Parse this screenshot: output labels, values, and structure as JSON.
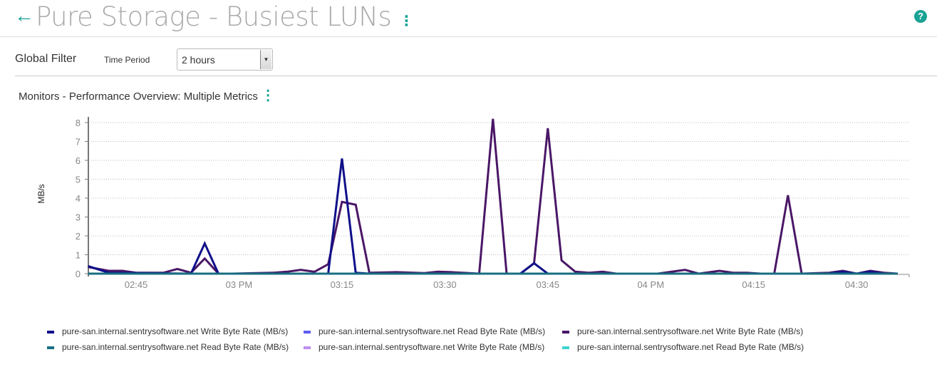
{
  "header": {
    "title": "Pure Storage - Busiest LUNs",
    "back_icon": "arrow-left-icon",
    "help_icon": "question-circle-icon",
    "help_label": "?",
    "menu_label": "⋮"
  },
  "filter": {
    "label": "Global Filter",
    "time_period_label": "Time Period",
    "time_period_value": "2 hours",
    "dropdown_arrow": "▼"
  },
  "widget": {
    "title": "Monitors - Performance Overview: Multiple Metrics",
    "menu_label": "⋮"
  },
  "chart_data": {
    "type": "line",
    "ylabel": "MB/s",
    "xlabel": "",
    "ylim": [
      0,
      8
    ],
    "yticks": [
      "0",
      "1",
      "2",
      "3",
      "4",
      "5",
      "6",
      "7",
      "8"
    ],
    "xticks": [
      {
        "t": "14:45",
        "label": "02:45"
      },
      {
        "t": "15:00",
        "label": "03 PM"
      },
      {
        "t": "15:15",
        "label": "03:15"
      },
      {
        "t": "15:30",
        "label": "03:30"
      },
      {
        "t": "15:45",
        "label": "03:45"
      },
      {
        "t": "16:00",
        "label": "04 PM"
      },
      {
        "t": "16:15",
        "label": "04:15"
      },
      {
        "t": "16:30",
        "label": "04:30"
      }
    ],
    "grid": true,
    "legend_position": "bottom",
    "series": [
      {
        "name": "pure-san.internal.sentrysoftware.net Write Byte Rate (MB/s)",
        "color": "#4a1766",
        "points": [
          [
            "14:38",
            0.35
          ],
          [
            "14:41",
            0.15
          ],
          [
            "14:43",
            0.15
          ],
          [
            "14:45",
            0.05
          ],
          [
            "14:49",
            0.05
          ],
          [
            "14:51",
            0.25
          ],
          [
            "14:53",
            0.05
          ],
          [
            "14:55",
            0.8
          ],
          [
            "14:57",
            0
          ],
          [
            "14:59",
            0
          ],
          [
            "15:05",
            0.05
          ],
          [
            "15:07",
            0.1
          ],
          [
            "15:09",
            0.2
          ],
          [
            "15:11",
            0.1
          ],
          [
            "15:13",
            0.5
          ],
          [
            "15:15",
            3.8
          ],
          [
            "15:17",
            3.65
          ],
          [
            "15:19",
            0.05
          ],
          [
            "15:23",
            0.08
          ],
          [
            "15:27",
            0.03
          ],
          [
            "15:29",
            0.1
          ],
          [
            "15:31",
            0.08
          ],
          [
            "15:35",
            0
          ],
          [
            "15:37",
            8.2
          ],
          [
            "15:39",
            0
          ],
          [
            "15:41",
            0
          ],
          [
            "15:43",
            0.55
          ],
          [
            "15:45",
            7.7
          ],
          [
            "15:47",
            0.7
          ],
          [
            "15:49",
            0.1
          ],
          [
            "15:51",
            0.05
          ],
          [
            "15:53",
            0.1
          ],
          [
            "15:55",
            0
          ],
          [
            "16:01",
            0
          ],
          [
            "16:05",
            0.2
          ],
          [
            "16:07",
            0
          ],
          [
            "16:10",
            0.15
          ],
          [
            "16:12",
            0.05
          ],
          [
            "16:14",
            0.05
          ],
          [
            "16:16",
            0
          ],
          [
            "16:18",
            0
          ],
          [
            "16:20",
            4.15
          ],
          [
            "16:22",
            0
          ],
          [
            "16:26",
            0.05
          ],
          [
            "16:28",
            0.15
          ],
          [
            "16:30",
            0
          ],
          [
            "16:32",
            0.15
          ],
          [
            "16:34",
            0.05
          ],
          [
            "16:36",
            0
          ]
        ]
      },
      {
        "name": "pure-san.internal.sentrysoftware.net Write Byte Rate (MB/s)",
        "color": "#10108a",
        "points": [
          [
            "14:38",
            0.4
          ],
          [
            "14:41",
            0.05
          ],
          [
            "14:53",
            0
          ],
          [
            "14:55",
            1.6
          ],
          [
            "14:57",
            0
          ],
          [
            "15:13",
            0
          ],
          [
            "15:15",
            6.1
          ],
          [
            "15:17",
            0.05
          ],
          [
            "15:19",
            0
          ],
          [
            "15:41",
            0
          ],
          [
            "15:43",
            0.55
          ],
          [
            "15:45",
            0
          ],
          [
            "16:26",
            0
          ],
          [
            "16:28",
            0.1
          ],
          [
            "16:30",
            0
          ],
          [
            "16:32",
            0.1
          ],
          [
            "16:34",
            0
          ],
          [
            "16:36",
            0
          ]
        ]
      },
      {
        "name": "pure-san.internal.sentrysoftware.net Read Byte Rate (MB/s)",
        "color": "#5c5cf2",
        "points": [
          [
            "14:38",
            0
          ],
          [
            "16:36",
            0
          ]
        ]
      },
      {
        "name": "pure-san.internal.sentrysoftware.net Write Byte Rate (MB/s)",
        "color": "#bf8ef0",
        "points": [
          [
            "14:38",
            0
          ],
          [
            "16:36",
            0
          ]
        ]
      },
      {
        "name": "pure-san.internal.sentrysoftware.net Read Byte Rate (MB/s)",
        "color": "#3fd4cf",
        "points": [
          [
            "14:38",
            0
          ],
          [
            "16:36",
            0
          ]
        ]
      },
      {
        "name": "pure-san.internal.sentrysoftware.net Read Byte Rate (MB/s)",
        "color": "#176e82",
        "points": [
          [
            "14:38",
            0
          ],
          [
            "16:36",
            0
          ]
        ]
      }
    ]
  },
  "legend": [
    {
      "label": "pure-san.internal.sentrysoftware.net Write Byte Rate (MB/s)",
      "color": "#10108a"
    },
    {
      "label": "pure-san.internal.sentrysoftware.net Read Byte Rate (MB/s)",
      "color": "#5c5cf2"
    },
    {
      "label": "pure-san.internal.sentrysoftware.net Write Byte Rate (MB/s)",
      "color": "#4a1766"
    },
    {
      "label": "pure-san.internal.sentrysoftware.net Read Byte Rate (MB/s)",
      "color": "#176e82"
    },
    {
      "label": "pure-san.internal.sentrysoftware.net Write Byte Rate (MB/s)",
      "color": "#bf8ef0"
    },
    {
      "label": "pure-san.internal.sentrysoftware.net Read Byte Rate (MB/s)",
      "color": "#3fd4cf"
    }
  ]
}
